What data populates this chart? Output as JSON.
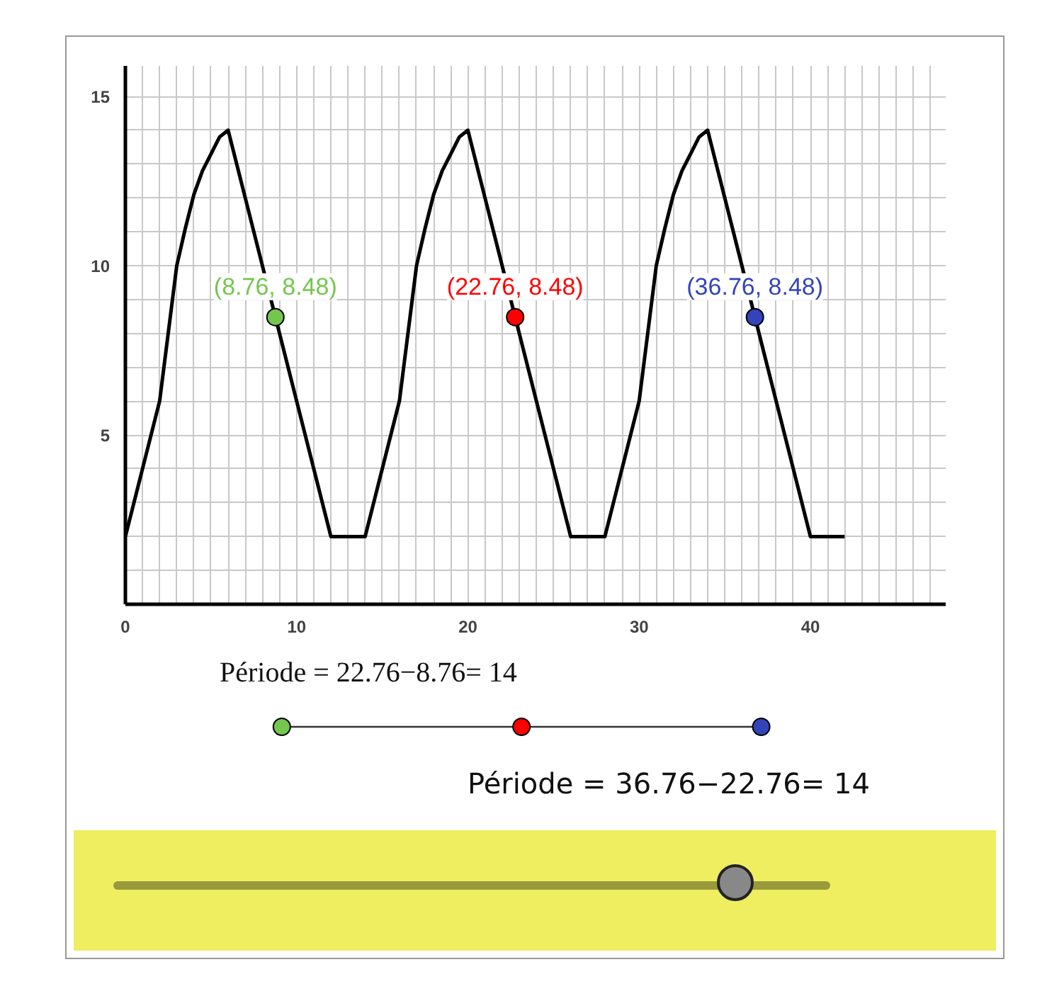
{
  "chart_data": {
    "type": "line",
    "x": [
      0,
      2,
      2.5,
      3,
      3.5,
      4,
      4.5,
      5,
      5.5,
      6,
      12,
      14,
      16,
      16.5,
      17,
      17.5,
      18,
      18.5,
      19,
      19.5,
      20,
      26,
      28,
      30,
      30.5,
      31,
      31.5,
      32,
      32.5,
      33,
      33.5,
      34,
      40,
      42
    ],
    "series": [
      {
        "color": "#000000",
        "values": [
          2,
          6,
          8,
          10,
          11.1,
          12.1,
          12.8,
          13.3,
          13.8,
          14,
          2,
          2,
          6,
          8,
          10,
          11.1,
          12.1,
          12.8,
          13.3,
          13.8,
          14,
          2,
          2,
          6,
          8,
          10,
          11.1,
          12.1,
          12.8,
          13.3,
          13.8,
          14,
          2,
          2
        ]
      },
      {
        "type": "scatter",
        "x": [
          8.76
        ],
        "values": [
          8.48
        ],
        "color": "#74c64f",
        "value_labels": [
          "(8.76, 8.48)"
        ]
      },
      {
        "type": "scatter",
        "x": [
          22.76
        ],
        "values": [
          8.48
        ],
        "color": "#ff0000",
        "value_labels": [
          "(22.76, 8.48)"
        ]
      },
      {
        "type": "scatter",
        "x": [
          36.76
        ],
        "values": [
          8.48
        ],
        "color": "#3344bb",
        "value_labels": [
          "(36.76, 8.48)"
        ]
      }
    ],
    "xlim": [
      0,
      47.9
    ],
    "ylim": [
      0,
      15.9
    ],
    "xticks": [
      0,
      {
        "value": 1,
        "label": null
      },
      {
        "value": 2,
        "label": null
      },
      {
        "value": 3,
        "label": null
      },
      {
        "value": 4,
        "label": null
      },
      {
        "value": 5,
        "label": null
      },
      {
        "value": 6,
        "label": null
      },
      {
        "value": 7,
        "label": null
      },
      {
        "value": 8,
        "label": null
      },
      {
        "value": 9,
        "label": null
      },
      10,
      {
        "value": 11,
        "label": null
      },
      {
        "value": 12,
        "label": null
      },
      {
        "value": 13,
        "label": null
      },
      {
        "value": 14,
        "label": null
      },
      {
        "value": 15,
        "label": null
      },
      {
        "value": 16,
        "label": null
      },
      {
        "value": 17,
        "label": null
      },
      {
        "value": 18,
        "label": null
      },
      {
        "value": 19,
        "label": null
      },
      20,
      {
        "value": 21,
        "label": null
      },
      {
        "value": 22,
        "label": null
      },
      {
        "value": 23,
        "label": null
      },
      {
        "value": 24,
        "label": null
      },
      {
        "value": 25,
        "label": null
      },
      {
        "value": 26,
        "label": null
      },
      {
        "value": 27,
        "label": null
      },
      {
        "value": 28,
        "label": null
      },
      {
        "value": 29,
        "label": null
      },
      30,
      {
        "value": 31,
        "label": null
      },
      {
        "value": 32,
        "label": null
      },
      {
        "value": 33,
        "label": null
      },
      {
        "value": 34,
        "label": null
      },
      {
        "value": 35,
        "label": null
      },
      {
        "value": 36,
        "label": null
      },
      {
        "value": 37,
        "label": null
      },
      {
        "value": 38,
        "label": null
      },
      {
        "value": 39,
        "label": null
      },
      40,
      {
        "value": 41,
        "label": null
      },
      {
        "value": 42,
        "label": null
      },
      {
        "value": 43,
        "label": null
      },
      {
        "value": 44,
        "label": null
      },
      {
        "value": 45,
        "label": null
      },
      {
        "value": 46,
        "label": null
      },
      {
        "value": 47,
        "label": null
      }
    ],
    "yticks": [
      {
        "value": 0,
        "label": null
      },
      {
        "value": 1,
        "label": null
      },
      {
        "value": 2,
        "label": null
      },
      {
        "value": 3,
        "label": null
      },
      {
        "value": 4,
        "label": null
      },
      5,
      {
        "value": 6,
        "label": null
      },
      {
        "value": 7,
        "label": null
      },
      {
        "value": 8,
        "label": null
      },
      {
        "value": 9,
        "label": null
      },
      10,
      {
        "value": 11,
        "label": null
      },
      {
        "value": 12,
        "label": null
      },
      {
        "value": 13,
        "label": null
      },
      {
        "value": 14,
        "label": null
      },
      15
    ],
    "grid": true,
    "line_style": "solid",
    "annotations": [
      "Période = 22.76−8.76= 14",
      "Période = 36.76−22.76= 14"
    ]
  }
}
